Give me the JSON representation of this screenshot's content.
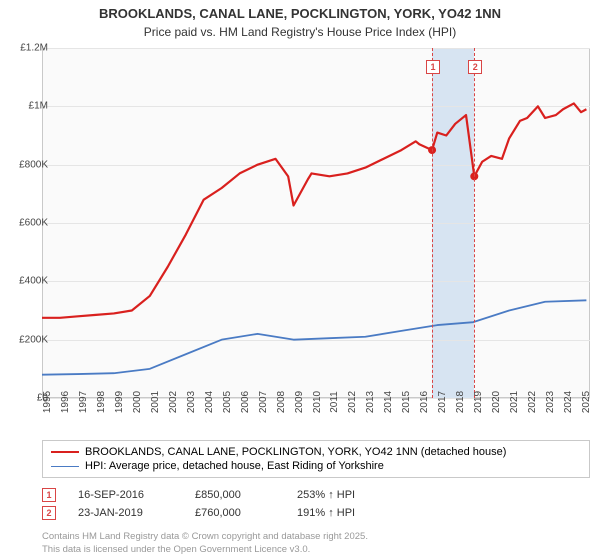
{
  "title_line1": "BROOKLANDS, CANAL LANE, POCKLINGTON, YORK, YO42 1NN",
  "title_line2": "Price paid vs. HM Land Registry's House Price Index (HPI)",
  "chart": {
    "type": "line",
    "x_years": [
      1995,
      1996,
      1997,
      1998,
      1999,
      2000,
      2001,
      2002,
      2003,
      2004,
      2005,
      2006,
      2007,
      2008,
      2009,
      2010,
      2011,
      2012,
      2013,
      2014,
      2015,
      2016,
      2017,
      2018,
      2019,
      2020,
      2021,
      2022,
      2023,
      2024,
      2025
    ],
    "xlim": [
      1995,
      2025.5
    ],
    "ylim": [
      0,
      1200000
    ],
    "ytick_step": 200000,
    "ytick_labels": [
      "£0",
      "£200K",
      "£400K",
      "£600K",
      "£800K",
      "£1M",
      "£1.2M"
    ],
    "background_color": "#fafafa",
    "grid_color": "#e5e5e5",
    "border_color": "#c9c9c9",
    "series": [
      {
        "name": "property",
        "label": "BROOKLANDS, CANAL LANE, POCKLINGTON, YORK, YO42 1NN (detached house)",
        "color": "#d9201e",
        "width": 2.2,
        "data": [
          [
            1995,
            275000
          ],
          [
            1996,
            275000
          ],
          [
            1997,
            280000
          ],
          [
            1998,
            285000
          ],
          [
            1999,
            290000
          ],
          [
            2000,
            300000
          ],
          [
            2001,
            350000
          ],
          [
            2002,
            450000
          ],
          [
            2003,
            560000
          ],
          [
            2004,
            680000
          ],
          [
            2005,
            720000
          ],
          [
            2006,
            770000
          ],
          [
            2007,
            800000
          ],
          [
            2008,
            820000
          ],
          [
            2008.7,
            760000
          ],
          [
            2009,
            660000
          ],
          [
            2009.8,
            750000
          ],
          [
            2010,
            770000
          ],
          [
            2011,
            760000
          ],
          [
            2012,
            770000
          ],
          [
            2013,
            790000
          ],
          [
            2014,
            820000
          ],
          [
            2015,
            850000
          ],
          [
            2015.8,
            880000
          ],
          [
            2016,
            870000
          ],
          [
            2016.71,
            850000
          ],
          [
            2017,
            910000
          ],
          [
            2017.5,
            900000
          ],
          [
            2018,
            940000
          ],
          [
            2018.6,
            970000
          ],
          [
            2019.06,
            760000
          ],
          [
            2019.5,
            810000
          ],
          [
            2020,
            830000
          ],
          [
            2020.6,
            820000
          ],
          [
            2021,
            890000
          ],
          [
            2021.6,
            950000
          ],
          [
            2022,
            960000
          ],
          [
            2022.6,
            1000000
          ],
          [
            2023,
            960000
          ],
          [
            2023.6,
            970000
          ],
          [
            2024,
            990000
          ],
          [
            2024.6,
            1010000
          ],
          [
            2025,
            980000
          ],
          [
            2025.3,
            990000
          ]
        ]
      },
      {
        "name": "hpi",
        "label": "HPI: Average price, detached house, East Riding of Yorkshire",
        "color": "#4a7bc4",
        "width": 1.8,
        "data": [
          [
            1995,
            80000
          ],
          [
            1997,
            82000
          ],
          [
            1999,
            85000
          ],
          [
            2001,
            100000
          ],
          [
            2003,
            150000
          ],
          [
            2005,
            200000
          ],
          [
            2007,
            220000
          ],
          [
            2009,
            200000
          ],
          [
            2011,
            205000
          ],
          [
            2013,
            210000
          ],
          [
            2015,
            230000
          ],
          [
            2017,
            250000
          ],
          [
            2019,
            260000
          ],
          [
            2021,
            300000
          ],
          [
            2023,
            330000
          ],
          [
            2025.3,
            335000
          ]
        ]
      }
    ],
    "sale_markers": [
      {
        "id": "1",
        "year": 2016.71,
        "value": 850000
      },
      {
        "id": "2",
        "year": 2019.06,
        "value": 760000
      }
    ],
    "highlight_band": {
      "from": 2016.71,
      "to": 2019.06,
      "color": "#d7e4f2"
    }
  },
  "legend": {
    "rows": [
      {
        "color": "#d9201e",
        "width": 2.2,
        "label_key": "chart.series.0.label"
      },
      {
        "color": "#4a7bc4",
        "width": 1.8,
        "label_key": "chart.series.1.label"
      }
    ]
  },
  "sales": [
    {
      "id": "1",
      "date": "16-SEP-2016",
      "price": "£850,000",
      "pct": "253% ↑ HPI"
    },
    {
      "id": "2",
      "date": "23-JAN-2019",
      "price": "£760,000",
      "pct": "191% ↑ HPI"
    }
  ],
  "footer": {
    "line1": "Contains HM Land Registry data © Crown copyright and database right 2025.",
    "line2": "This data is licensed under the Open Government Licence v3.0."
  }
}
